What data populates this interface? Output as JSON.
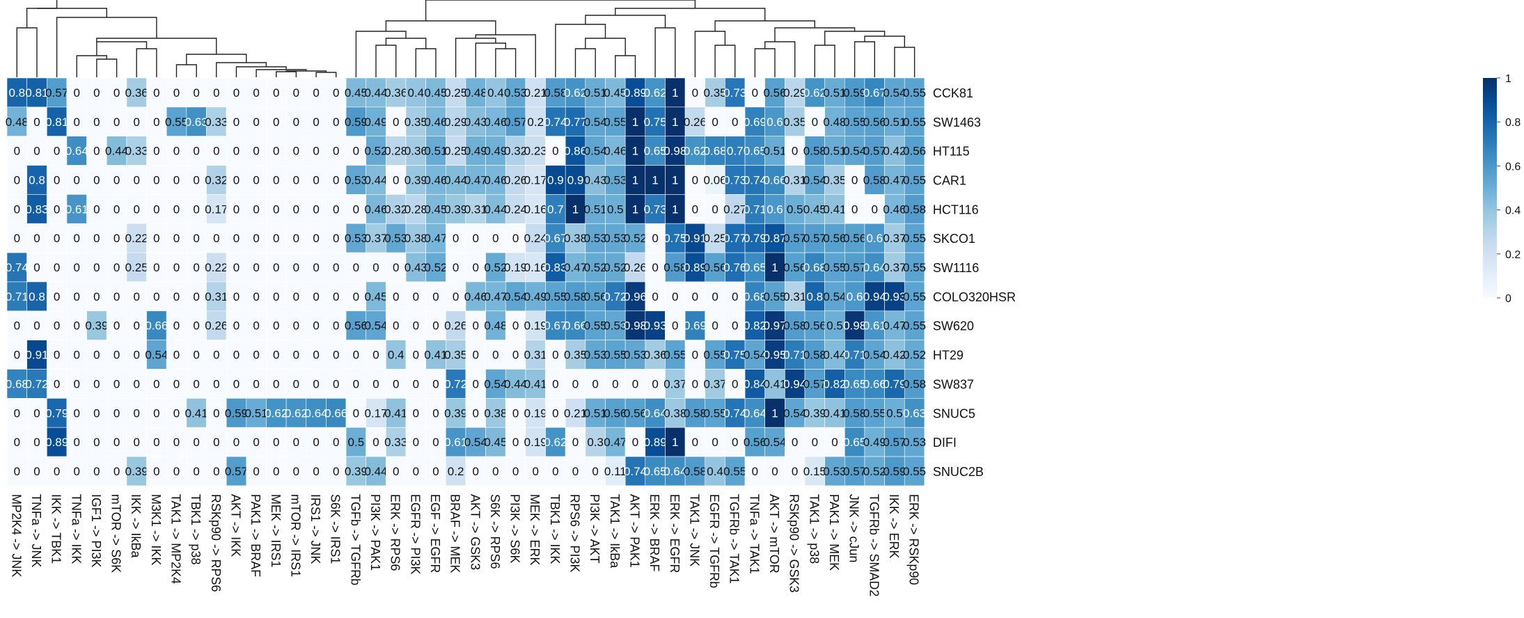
{
  "chart_data": {
    "type": "heatmap",
    "title": "",
    "xlabel": "",
    "ylabel": "",
    "columns": [
      "MP2K4 -> JNK",
      "TNFa -> JNK",
      "IKK -> TBK1",
      "TNFa -> IKK",
      "IGF1 -> PI3K",
      "mTOR -> S6K",
      "IKK -> IkBa",
      "M3K1 -> IKK",
      "TAK1 -> MP2K4",
      "TBK1 -> p38",
      "RSKp90 -> RPS6",
      "AKT -> IKK",
      "PAK1 -> BRAF",
      "MEK -> IRS1",
      "mTOR -> IRS1",
      "IRS1 -> JNK",
      "S6K -> IRS1",
      "TGFb -> TGFRb",
      "PI3K -> PAK1",
      "ERK -> RPS6",
      "EGFR -> PI3K",
      "EGF -> EGFR",
      "BRAF -> MEK",
      "AKT -> GSK3",
      "S6K -> RPS6",
      "PI3K -> S6K",
      "MEK -> ERK",
      "TBK1 -> IKK",
      "RPS6 -> PI3K",
      "PI3K -> AKT",
      "TAK1 -> IkBa",
      "AKT -> PAK1",
      "ERK -> BRAF",
      "ERK -> EGFR",
      "TAK1 -> JNK",
      "EGFR -> TGFRb",
      "TGFRb -> TAK1",
      "TNFa -> TAK1",
      "AKT -> mTOR",
      "RSKp90 -> GSK3",
      "TAK1 -> p38",
      "PAK1 -> MEK",
      "JNK -> cJun",
      "TGFRb -> SMAD2",
      "IKK -> ERK",
      "ERK -> RSKp90"
    ],
    "rows": [
      "CCK81",
      "SW1463",
      "HT115",
      "CAR1",
      "HCT116",
      "SKCO1",
      "SW1116",
      "COLO320HSR",
      "SW620",
      "HT29",
      "SW837",
      "SNUC5",
      "DIFI",
      "SNUC2B"
    ],
    "values": [
      [
        0.8,
        0.81,
        0.57,
        0,
        0,
        0,
        0.36,
        0,
        0,
        0,
        0,
        0,
        0,
        0,
        0,
        0,
        0,
        0.45,
        0.44,
        0.36,
        0.4,
        0.45,
        0.25,
        0.48,
        0.4,
        0.53,
        0.21,
        0.58,
        0.62,
        0.51,
        0.45,
        0.89,
        0.62,
        1,
        0,
        0.35,
        0.73,
        0,
        0.56,
        0.29,
        0.62,
        0.51,
        0.59,
        0.67,
        0.54,
        0.55
      ],
      [
        0.48,
        0,
        0.81,
        0,
        0,
        0,
        0,
        0,
        0.55,
        0.63,
        0.33,
        0,
        0,
        0,
        0,
        0,
        0,
        0.59,
        0.49,
        0,
        0.35,
        0.46,
        0.29,
        0.43,
        0.46,
        0.57,
        0.2,
        0.74,
        0.77,
        0.54,
        0.55,
        1,
        0.75,
        1,
        0.26,
        0,
        0,
        0.69,
        0.6,
        0.35,
        0,
        0.48,
        0.55,
        0.56,
        0.51,
        0.55
      ],
      [
        0,
        0,
        0,
        0.64,
        0,
        0.44,
        0.33,
        0,
        0,
        0,
        0,
        0,
        0,
        0,
        0,
        0,
        0,
        0,
        0.52,
        0.28,
        0.36,
        0.51,
        0.25,
        0.49,
        0.49,
        0.32,
        0.23,
        0,
        0.86,
        0.54,
        0.46,
        1,
        0.65,
        0.98,
        0.62,
        0.68,
        0.7,
        0.65,
        0.51,
        0,
        0.58,
        0.51,
        0.54,
        0.57,
        0.42,
        0.56
      ],
      [
        0,
        0.8,
        0,
        0,
        0,
        0,
        0,
        0,
        0,
        0,
        0.32,
        0,
        0,
        0,
        0,
        0,
        0,
        0.53,
        0.44,
        0,
        0.39,
        0.46,
        0.44,
        0.47,
        0.46,
        0.26,
        0.17,
        0.9,
        0.9,
        0.43,
        0.53,
        1,
        1,
        1,
        0,
        0.06,
        0.73,
        0.74,
        0.66,
        0.31,
        0.54,
        0.35,
        0,
        0.58,
        0.47,
        0.55
      ],
      [
        0,
        0.83,
        0,
        0.61,
        0,
        0,
        0,
        0,
        0,
        0,
        0.17,
        0,
        0,
        0,
        0,
        0,
        0,
        0,
        0.46,
        0.32,
        0.28,
        0.45,
        0.39,
        0.31,
        0.44,
        0.24,
        0.16,
        0.7,
        1,
        0.51,
        0.5,
        1,
        0.73,
        1,
        0,
        0,
        0.27,
        0.71,
        0.6,
        0.5,
        0.45,
        0.41,
        0,
        0,
        0.46,
        0.58
      ],
      [
        0,
        0,
        0,
        0,
        0,
        0,
        0.22,
        0,
        0,
        0,
        0,
        0,
        0,
        0,
        0,
        0,
        0,
        0.53,
        0.37,
        0.53,
        0.38,
        0.47,
        0,
        0,
        0,
        0,
        0.24,
        0.67,
        0.38,
        0.53,
        0.53,
        0.52,
        0,
        0.75,
        0.91,
        0.25,
        0.77,
        0.79,
        0.87,
        0.57,
        0.57,
        0.56,
        0.56,
        0.6,
        0.37,
        0.55
      ],
      [
        0.74,
        0,
        0,
        0,
        0,
        0,
        0.25,
        0,
        0,
        0,
        0.22,
        0,
        0,
        0,
        0,
        0,
        0,
        0,
        0,
        0,
        0.43,
        0.52,
        0,
        0,
        0.52,
        0.19,
        0.16,
        0.83,
        0.47,
        0.52,
        0.52,
        0.26,
        0,
        0.58,
        0.89,
        0.56,
        0.76,
        0.65,
        1,
        0.56,
        0.68,
        0.55,
        0.57,
        0.64,
        0.37,
        0.55
      ],
      [
        0.71,
        0.8,
        0,
        0,
        0,
        0,
        0,
        0,
        0,
        0,
        0.31,
        0,
        0,
        0,
        0,
        0,
        0,
        0,
        0.45,
        0,
        0,
        0,
        0,
        0.46,
        0.47,
        0.54,
        0.49,
        0.55,
        0.58,
        0.56,
        0.72,
        0.96,
        0,
        0,
        0,
        0,
        0,
        0.68,
        0.55,
        0.31,
        0.8,
        0.54,
        0.6,
        0.94,
        0.93,
        0.55
      ],
      [
        0,
        0,
        0,
        0,
        0.39,
        0,
        0,
        0.66,
        0,
        0,
        0.26,
        0,
        0,
        0,
        0,
        0,
        0,
        0.56,
        0.54,
        0,
        0,
        0,
        0.26,
        0,
        0.48,
        0,
        0.19,
        0.67,
        0.66,
        0.55,
        0.53,
        0.98,
        0.93,
        0,
        0.69,
        0,
        0,
        0.82,
        0.97,
        0.58,
        0.56,
        0.5,
        0.98,
        0.61,
        0.47,
        0.55
      ],
      [
        0,
        0.91,
        0,
        0,
        0,
        0,
        0,
        0.54,
        0,
        0,
        0,
        0,
        0,
        0,
        0,
        0,
        0,
        0,
        0,
        0.4,
        0,
        0.41,
        0.35,
        0,
        0,
        0,
        0.31,
        0,
        0.35,
        0.53,
        0.55,
        0.53,
        0.36,
        0.55,
        0,
        0.55,
        0.75,
        0.54,
        0.95,
        0.71,
        0.58,
        0.44,
        0.71,
        0.54,
        0.42,
        0.52
      ],
      [
        0.68,
        0.72,
        0,
        0,
        0,
        0,
        0,
        0,
        0,
        0,
        0,
        0,
        0,
        0,
        0,
        0,
        0,
        0,
        0,
        0,
        0,
        0,
        0.72,
        0,
        0.54,
        0.44,
        0.41,
        0,
        0,
        0,
        0,
        0,
        0,
        0.37,
        0,
        0.37,
        0,
        0.84,
        0.41,
        0.94,
        0.57,
        0.82,
        0.65,
        0.66,
        0.79,
        0.58
      ],
      [
        0,
        0,
        0.79,
        0,
        0,
        0,
        0,
        0,
        0,
        0.41,
        0,
        0.59,
        0.51,
        0.62,
        0.62,
        0.64,
        0.66,
        0,
        0.17,
        0.41,
        0,
        0,
        0.39,
        0,
        0.38,
        0,
        0.19,
        0,
        0.21,
        0.51,
        0.56,
        0.56,
        0.64,
        0.38,
        0.58,
        0.55,
        0.74,
        0.64,
        1,
        0.54,
        0.39,
        0.41,
        0.58,
        0.55,
        0.5,
        0.63
      ],
      [
        0,
        0,
        0.89,
        0,
        0,
        0,
        0,
        0,
        0,
        0,
        0,
        0,
        0,
        0,
        0,
        0,
        0,
        0.5,
        0,
        0.33,
        0,
        0,
        0.61,
        0.54,
        0.45,
        0,
        0.19,
        0.62,
        0,
        0.3,
        0.47,
        0,
        0.89,
        1,
        0,
        0,
        0,
        0.56,
        0.54,
        0,
        0,
        0,
        0.65,
        0.49,
        0.57,
        0.53
      ],
      [
        0,
        0,
        0,
        0,
        0,
        0,
        0.39,
        0,
        0,
        0,
        0,
        0.57,
        0,
        0,
        0,
        0,
        0,
        0.39,
        0.44,
        0,
        0,
        0,
        0.2,
        0,
        0,
        0,
        0,
        0,
        0,
        0,
        0.11,
        0.74,
        0.65,
        0.64,
        0.58,
        0.4,
        0.55,
        0,
        0,
        0,
        0.15,
        0.53,
        0.57,
        0.52,
        0.59,
        0.55
      ]
    ],
    "color_range": [
      0,
      1
    ],
    "colorbar": {
      "ticks": [
        1,
        0.8,
        0.6,
        0.4,
        0.2,
        0
      ],
      "low_color": "#f7fbff",
      "high_color": "#08306b",
      "placement": "right"
    },
    "dendrogram": "top"
  }
}
